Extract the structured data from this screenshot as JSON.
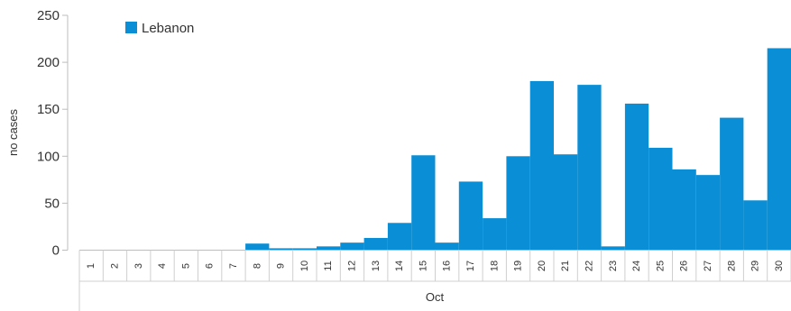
{
  "chart_data": {
    "type": "bar",
    "title": "",
    "xlabel": "Oct",
    "ylabel": "no cases",
    "ylim": [
      0,
      250
    ],
    "yticks": [
      0,
      50,
      100,
      150,
      200,
      250
    ],
    "grid": false,
    "legend_position": "top-left",
    "categories": [
      "1",
      "2",
      "3",
      "4",
      "5",
      "6",
      "7",
      "8",
      "9",
      "10",
      "11",
      "12",
      "13",
      "14",
      "15",
      "16",
      "17",
      "18",
      "19",
      "20",
      "21",
      "22",
      "23",
      "24",
      "25",
      "26",
      "27",
      "28",
      "29",
      "30"
    ],
    "series": [
      {
        "name": "Lebanon",
        "color": "#0a8fd6",
        "values": [
          0,
          0,
          0,
          0,
          0,
          0,
          0,
          7,
          2,
          2,
          4,
          8,
          13,
          29,
          101,
          8,
          73,
          34,
          100,
          180,
          102,
          176,
          4,
          156,
          109,
          86,
          80,
          141,
          53,
          215
        ]
      }
    ]
  }
}
